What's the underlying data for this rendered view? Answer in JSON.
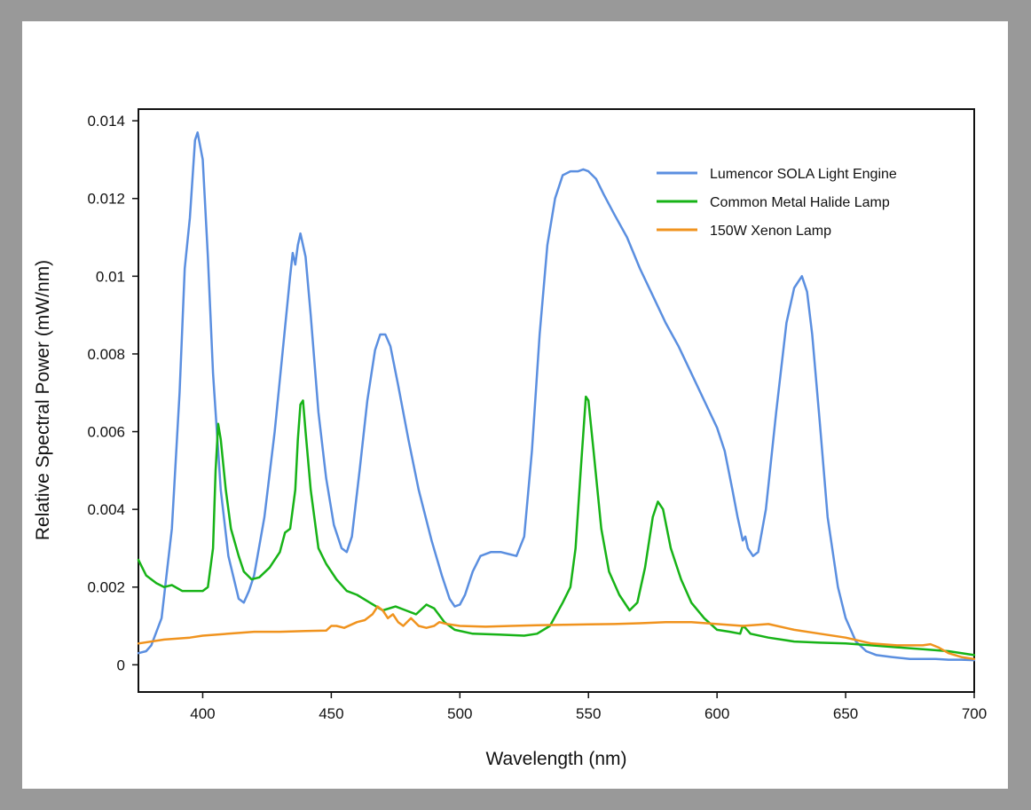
{
  "chart_data": {
    "type": "line",
    "title": "",
    "xlabel": "Wavelength (nm)",
    "ylabel": "Relative Spectral Power (mW/nm)",
    "xlim": [
      375,
      700
    ],
    "ylim": [
      -0.0007,
      0.0143
    ],
    "xticks": [
      400,
      450,
      500,
      550,
      600,
      650,
      700
    ],
    "yticks": [
      0,
      0.002,
      0.004,
      0.006,
      0.008,
      0.01,
      0.012,
      0.014
    ],
    "ytick_labels": [
      "0",
      "0.002",
      "0.004",
      "0.006",
      "0.008",
      "0.01",
      "0.012",
      "0.014"
    ],
    "grid": false,
    "legend_position": "top-right",
    "series": [
      {
        "name": "Lumencor SOLA Light Engine",
        "color": "#5b8fe0",
        "points": [
          [
            375,
            0.0003
          ],
          [
            378,
            0.00035
          ],
          [
            380,
            0.0005
          ],
          [
            384,
            0.0012
          ],
          [
            388,
            0.0035
          ],
          [
            391,
            0.007
          ],
          [
            393,
            0.0102
          ],
          [
            395,
            0.0115
          ],
          [
            397,
            0.0135
          ],
          [
            398,
            0.0137
          ],
          [
            400,
            0.013
          ],
          [
            402,
            0.0105
          ],
          [
            404,
            0.0075
          ],
          [
            407,
            0.0045
          ],
          [
            410,
            0.0028
          ],
          [
            414,
            0.0017
          ],
          [
            416,
            0.0016
          ],
          [
            418,
            0.0019
          ],
          [
            420,
            0.0023
          ],
          [
            424,
            0.0038
          ],
          [
            428,
            0.006
          ],
          [
            431,
            0.008
          ],
          [
            434,
            0.01
          ],
          [
            435,
            0.0106
          ],
          [
            436,
            0.0103
          ],
          [
            437,
            0.0108
          ],
          [
            438,
            0.0111
          ],
          [
            440,
            0.0105
          ],
          [
            442,
            0.009
          ],
          [
            445,
            0.0065
          ],
          [
            448,
            0.0048
          ],
          [
            451,
            0.0036
          ],
          [
            454,
            0.003
          ],
          [
            456,
            0.0029
          ],
          [
            458,
            0.0033
          ],
          [
            461,
            0.005
          ],
          [
            464,
            0.0068
          ],
          [
            467,
            0.0081
          ],
          [
            469,
            0.0085
          ],
          [
            471,
            0.0085
          ],
          [
            473,
            0.0082
          ],
          [
            476,
            0.0072
          ],
          [
            480,
            0.0058
          ],
          [
            484,
            0.0045
          ],
          [
            489,
            0.0032
          ],
          [
            493,
            0.0023
          ],
          [
            496,
            0.0017
          ],
          [
            498,
            0.0015
          ],
          [
            500,
            0.00155
          ],
          [
            502,
            0.0018
          ],
          [
            505,
            0.0024
          ],
          [
            508,
            0.0028
          ],
          [
            512,
            0.0029
          ],
          [
            516,
            0.0029
          ],
          [
            519,
            0.00285
          ],
          [
            522,
            0.0028
          ],
          [
            525,
            0.0033
          ],
          [
            528,
            0.0055
          ],
          [
            531,
            0.0085
          ],
          [
            534,
            0.0108
          ],
          [
            537,
            0.012
          ],
          [
            540,
            0.0126
          ],
          [
            543,
            0.0127
          ],
          [
            546,
            0.0127
          ],
          [
            548,
            0.01275
          ],
          [
            550,
            0.0127
          ],
          [
            553,
            0.0125
          ],
          [
            556,
            0.0121
          ],
          [
            560,
            0.0116
          ],
          [
            565,
            0.011
          ],
          [
            570,
            0.0102
          ],
          [
            575,
            0.0095
          ],
          [
            580,
            0.0088
          ],
          [
            585,
            0.0082
          ],
          [
            590,
            0.0075
          ],
          [
            595,
            0.0068
          ],
          [
            600,
            0.0061
          ],
          [
            603,
            0.0055
          ],
          [
            606,
            0.0045
          ],
          [
            608,
            0.0038
          ],
          [
            610,
            0.0032
          ],
          [
            611,
            0.0033
          ],
          [
            612,
            0.003
          ],
          [
            614,
            0.0028
          ],
          [
            616,
            0.0029
          ],
          [
            619,
            0.004
          ],
          [
            623,
            0.0065
          ],
          [
            627,
            0.0088
          ],
          [
            630,
            0.0097
          ],
          [
            633,
            0.01
          ],
          [
            635,
            0.0096
          ],
          [
            637,
            0.0085
          ],
          [
            640,
            0.0062
          ],
          [
            643,
            0.0038
          ],
          [
            647,
            0.002
          ],
          [
            650,
            0.0012
          ],
          [
            654,
            0.0006
          ],
          [
            658,
            0.00035
          ],
          [
            662,
            0.00025
          ],
          [
            668,
            0.0002
          ],
          [
            675,
            0.00015
          ],
          [
            680,
            0.00015
          ],
          [
            685,
            0.00015
          ],
          [
            690,
            0.00013
          ],
          [
            695,
            0.00013
          ],
          [
            700,
            0.00012
          ]
        ]
      },
      {
        "name": "Common Metal Halide Lamp",
        "color": "#17b317",
        "points": [
          [
            375,
            0.0027
          ],
          [
            378,
            0.0023
          ],
          [
            382,
            0.0021
          ],
          [
            385,
            0.002
          ],
          [
            388,
            0.00205
          ],
          [
            392,
            0.0019
          ],
          [
            396,
            0.0019
          ],
          [
            400,
            0.0019
          ],
          [
            402,
            0.002
          ],
          [
            404,
            0.003
          ],
          [
            405,
            0.005
          ],
          [
            406,
            0.0062
          ],
          [
            407,
            0.0058
          ],
          [
            409,
            0.0045
          ],
          [
            411,
            0.0035
          ],
          [
            414,
            0.0028
          ],
          [
            416,
            0.0024
          ],
          [
            419,
            0.0022
          ],
          [
            422,
            0.00225
          ],
          [
            426,
            0.0025
          ],
          [
            430,
            0.0029
          ],
          [
            432,
            0.0034
          ],
          [
            434,
            0.0035
          ],
          [
            436,
            0.0045
          ],
          [
            437,
            0.0058
          ],
          [
            438,
            0.0067
          ],
          [
            439,
            0.0068
          ],
          [
            440,
            0.006
          ],
          [
            442,
            0.0045
          ],
          [
            445,
            0.003
          ],
          [
            448,
            0.0026
          ],
          [
            452,
            0.0022
          ],
          [
            456,
            0.0019
          ],
          [
            460,
            0.0018
          ],
          [
            465,
            0.0016
          ],
          [
            470,
            0.0014
          ],
          [
            475,
            0.0015
          ],
          [
            479,
            0.0014
          ],
          [
            483,
            0.0013
          ],
          [
            487,
            0.00155
          ],
          [
            490,
            0.00145
          ],
          [
            494,
            0.0011
          ],
          [
            498,
            0.0009
          ],
          [
            505,
            0.0008
          ],
          [
            515,
            0.00078
          ],
          [
            525,
            0.00075
          ],
          [
            530,
            0.0008
          ],
          [
            535,
            0.001
          ],
          [
            540,
            0.0016
          ],
          [
            543,
            0.002
          ],
          [
            545,
            0.003
          ],
          [
            547,
            0.005
          ],
          [
            549,
            0.0069
          ],
          [
            550,
            0.0068
          ],
          [
            552,
            0.0055
          ],
          [
            555,
            0.0035
          ],
          [
            558,
            0.0024
          ],
          [
            562,
            0.0018
          ],
          [
            566,
            0.0014
          ],
          [
            569,
            0.0016
          ],
          [
            572,
            0.0025
          ],
          [
            575,
            0.0038
          ],
          [
            577,
            0.0042
          ],
          [
            579,
            0.004
          ],
          [
            582,
            0.003
          ],
          [
            586,
            0.0022
          ],
          [
            590,
            0.0016
          ],
          [
            595,
            0.0012
          ],
          [
            600,
            0.0009
          ],
          [
            605,
            0.00085
          ],
          [
            609,
            0.0008
          ],
          [
            610,
            0.001
          ],
          [
            611,
            0.00095
          ],
          [
            613,
            0.0008
          ],
          [
            620,
            0.0007
          ],
          [
            630,
            0.0006
          ],
          [
            640,
            0.00057
          ],
          [
            650,
            0.00055
          ],
          [
            660,
            0.0005
          ],
          [
            670,
            0.00045
          ],
          [
            680,
            0.0004
          ],
          [
            690,
            0.00035
          ],
          [
            700,
            0.00025
          ]
        ]
      },
      {
        "name": "150W Xenon Lamp",
        "color": "#f0931e",
        "points": [
          [
            375,
            0.00055
          ],
          [
            385,
            0.00065
          ],
          [
            395,
            0.0007
          ],
          [
            400,
            0.00075
          ],
          [
            410,
            0.0008
          ],
          [
            420,
            0.00085
          ],
          [
            430,
            0.00085
          ],
          [
            440,
            0.00087
          ],
          [
            448,
            0.00088
          ],
          [
            450,
            0.001
          ],
          [
            452,
            0.001
          ],
          [
            455,
            0.00095
          ],
          [
            460,
            0.0011
          ],
          [
            463,
            0.00115
          ],
          [
            466,
            0.0013
          ],
          [
            468,
            0.0015
          ],
          [
            470,
            0.0014
          ],
          [
            472,
            0.0012
          ],
          [
            474,
            0.0013
          ],
          [
            476,
            0.0011
          ],
          [
            478,
            0.001
          ],
          [
            481,
            0.0012
          ],
          [
            484,
            0.001
          ],
          [
            487,
            0.00095
          ],
          [
            490,
            0.001
          ],
          [
            492,
            0.0011
          ],
          [
            495,
            0.00105
          ],
          [
            500,
            0.001
          ],
          [
            510,
            0.00098
          ],
          [
            520,
            0.001
          ],
          [
            530,
            0.00102
          ],
          [
            540,
            0.00103
          ],
          [
            550,
            0.00104
          ],
          [
            560,
            0.00105
          ],
          [
            570,
            0.00107
          ],
          [
            580,
            0.0011
          ],
          [
            590,
            0.0011
          ],
          [
            600,
            0.00105
          ],
          [
            610,
            0.001
          ],
          [
            620,
            0.00105
          ],
          [
            630,
            0.0009
          ],
          [
            640,
            0.0008
          ],
          [
            650,
            0.0007
          ],
          [
            660,
            0.00055
          ],
          [
            670,
            0.0005
          ],
          [
            675,
            0.0005
          ],
          [
            680,
            0.0005
          ],
          [
            683,
            0.00053
          ],
          [
            686,
            0.00045
          ],
          [
            690,
            0.0003
          ],
          [
            695,
            0.0002
          ],
          [
            700,
            0.00015
          ]
        ]
      }
    ]
  }
}
